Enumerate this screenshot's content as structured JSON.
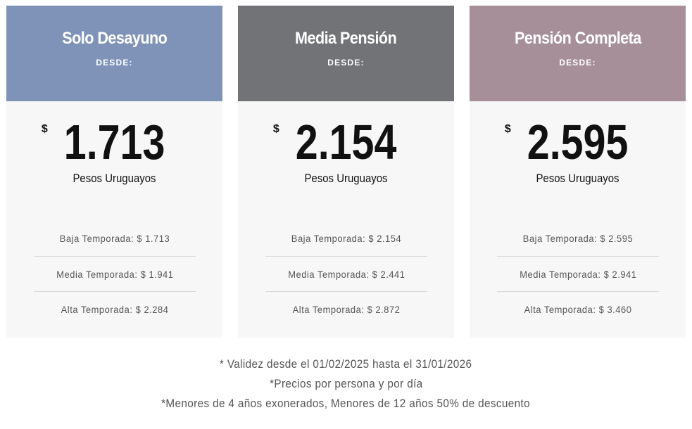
{
  "plans": [
    {
      "title": "Solo Desayuno",
      "desde": "DESDE:",
      "header_color": "#7f93b8",
      "currency": "$",
      "amount": "1.713",
      "unit": "Pesos Uruguayos",
      "tiers": [
        "Baja Temporada: $ 1.713",
        "Media Temporada: $ 1.941",
        "Alta Temporada: $ 2.284"
      ]
    },
    {
      "title": "Media Pensión",
      "desde": "DESDE:",
      "header_color": "#727376",
      "currency": "$",
      "amount": "2.154",
      "unit": "Pesos Uruguayos",
      "tiers": [
        "Baja Temporada: $ 2.154",
        "Media Temporada: $ 2.441",
        "Alta Temporada: $ 2.872"
      ]
    },
    {
      "title": "Pensión Completa",
      "desde": "DESDE:",
      "header_color": "#a78f99",
      "currency": "$",
      "amount": "2.595",
      "unit": "Pesos Uruguayos",
      "tiers": [
        "Baja Temporada: $ 2.595",
        "Media Temporada: $ 2.941",
        "Alta Temporada: $ 3.460"
      ]
    }
  ],
  "notes": [
    "* Validez desde el 01/02/2025 hasta el 31/01/2026",
    "*Precios por persona y por día",
    "*Menores de 4 años exonerados, Menores de 12 años 50% de descuento"
  ]
}
